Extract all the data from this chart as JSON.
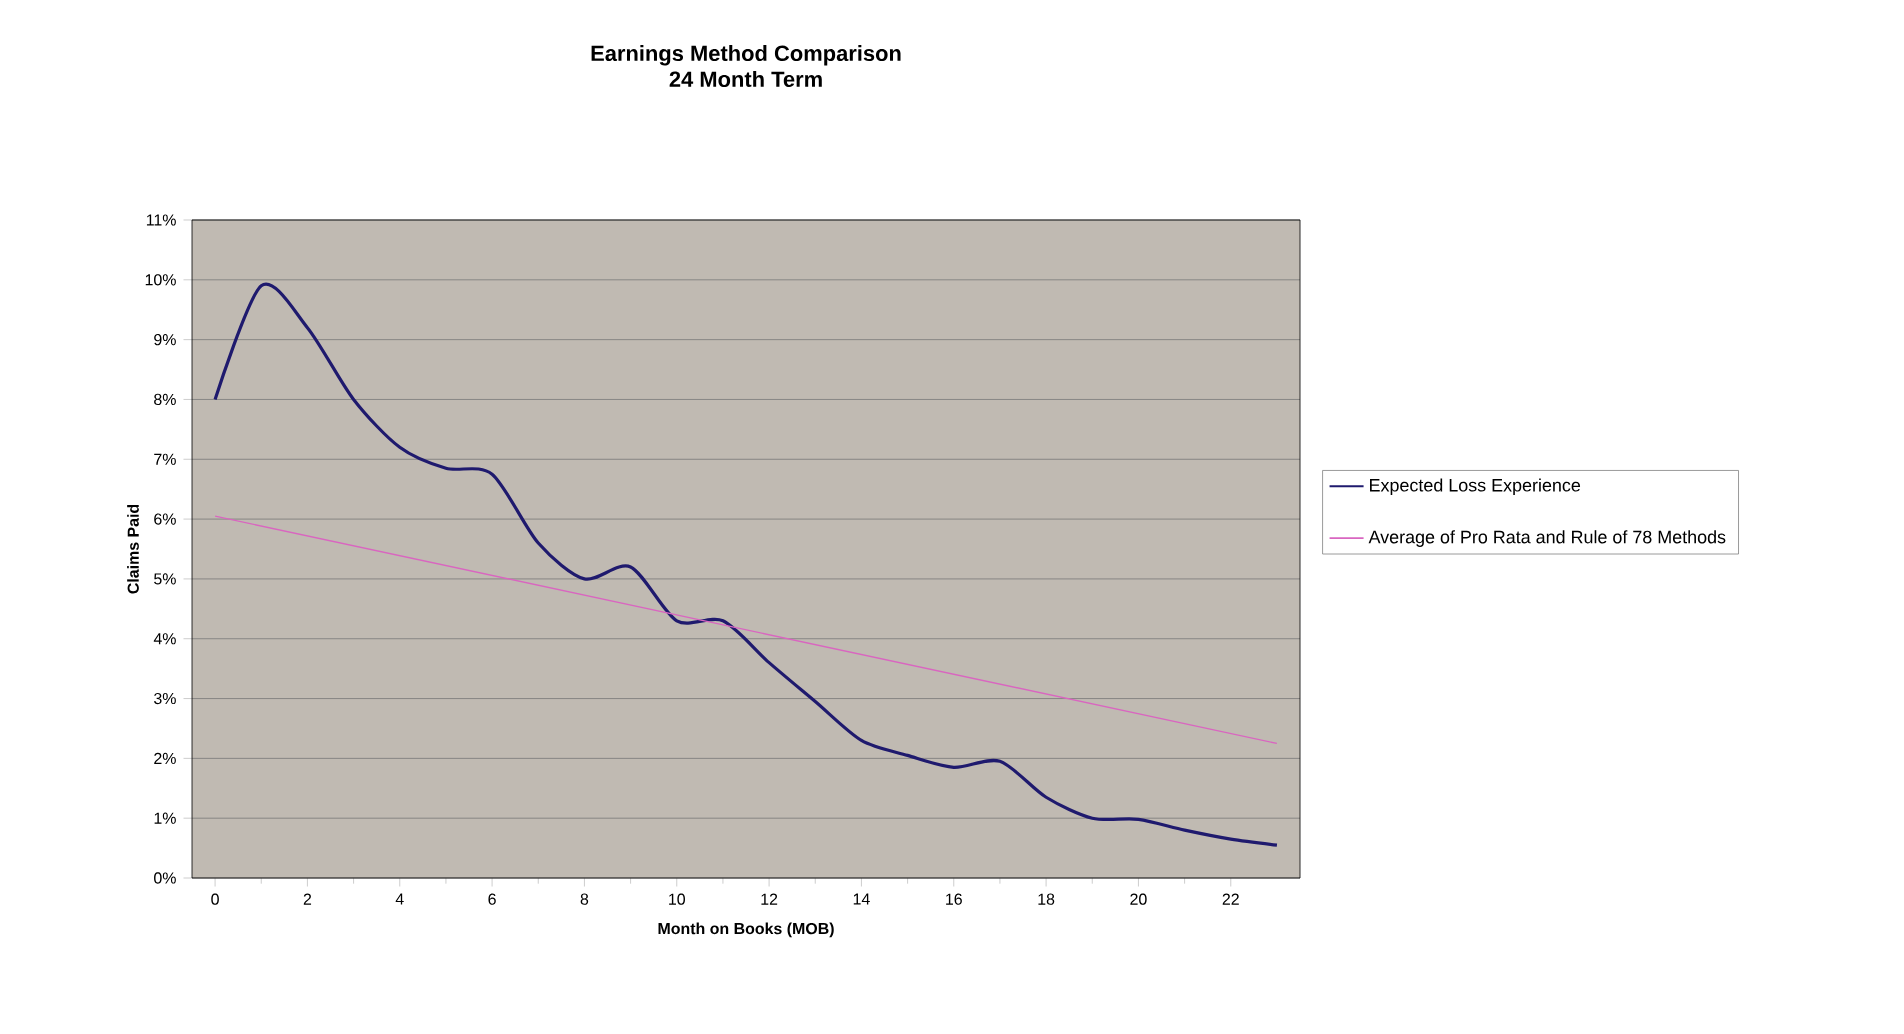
{
  "chart_data": {
    "type": "line",
    "title": "Earnings Method Comparison",
    "subtitle": "24 Month Term",
    "xlabel": "Month on Books (MOB)",
    "ylabel": "Claims Paid",
    "xlim": [
      -0.5,
      23.5
    ],
    "xticks": [
      0,
      2,
      4,
      6,
      8,
      10,
      12,
      14,
      16,
      18,
      20,
      22
    ],
    "ylim": [
      0,
      11
    ],
    "yticks": [
      {
        "value": 0,
        "label": "0%"
      },
      {
        "value": 1,
        "label": "1%"
      },
      {
        "value": 2,
        "label": "2%"
      },
      {
        "value": 3,
        "label": "3%"
      },
      {
        "value": 4,
        "label": "4%"
      },
      {
        "value": 5,
        "label": "5%"
      },
      {
        "value": 6,
        "label": "6%"
      },
      {
        "value": 7,
        "label": "7%"
      },
      {
        "value": 8,
        "label": "8%"
      },
      {
        "value": 9,
        "label": "9%"
      },
      {
        "value": 10,
        "label": "10%"
      },
      {
        "value": 11,
        "label": "11%"
      }
    ],
    "grid": "y",
    "legend": "right",
    "marker": "none",
    "series": [
      {
        "name": "Expected Loss Experience",
        "color": "#1f1a6e",
        "x": [
          0,
          1,
          2,
          3,
          4,
          5,
          6,
          7,
          8,
          9,
          10,
          11,
          12,
          13,
          14,
          15,
          16,
          17,
          18,
          19,
          20,
          21,
          22,
          23
        ],
        "values": [
          8.0,
          9.9,
          9.2,
          8.0,
          7.2,
          6.85,
          6.75,
          5.6,
          5.0,
          5.2,
          4.3,
          4.3,
          3.6,
          2.95,
          2.3,
          2.05,
          1.85,
          1.95,
          1.35,
          1.0,
          0.98,
          0.8,
          0.65,
          0.55
        ]
      },
      {
        "name": "Average of Pro Rata and Rule of 78 Methods",
        "color": "#d966c0",
        "x": [
          0,
          23
        ],
        "values": [
          6.05,
          2.25
        ]
      }
    ]
  }
}
